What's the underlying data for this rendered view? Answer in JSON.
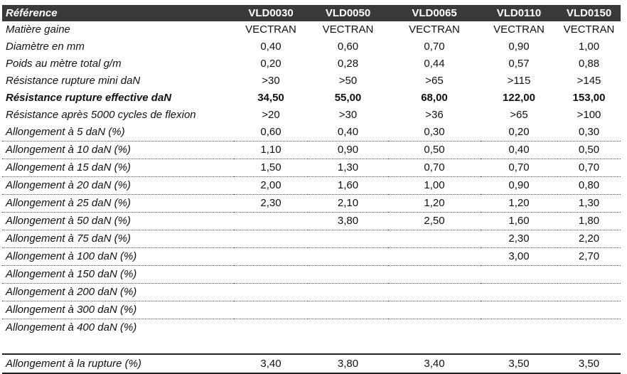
{
  "table": {
    "header": {
      "label": "Référence",
      "columns": [
        "VLD0030",
        "VLD0050",
        "VLD0065",
        "VLD0110",
        "VLD0150"
      ]
    },
    "rows": [
      {
        "label": "Matière gaine",
        "values": [
          "VECTRAN",
          "VECTRAN",
          "VECTRAN",
          "VECTRAN",
          "VECTRAN"
        ]
      },
      {
        "label": "Diamètre en mm",
        "values": [
          "0,40",
          "0,60",
          "0,70",
          "0,90",
          "1,00"
        ]
      },
      {
        "label": "Poids au mètre total g/m",
        "values": [
          "0,20",
          "0,28",
          "0,44",
          "0,57",
          "0,88"
        ]
      },
      {
        "label": "Résistance rupture mini daN",
        "values": [
          ">30",
          ">50",
          ">65",
          ">115",
          ">145"
        ]
      },
      {
        "label": "Résistance rupture effective daN",
        "values": [
          "34,50",
          "55,00",
          "68,00",
          "122,00",
          "153,00"
        ]
      },
      {
        "label": "Résistance après 5000 cycles de flexion",
        "values": [
          ">20",
          ">30",
          ">36",
          ">65",
          ">100"
        ]
      },
      {
        "label": "Allongement à 5 daN (%)",
        "values": [
          "0,60",
          "0,40",
          "0,30",
          "0,20",
          "0,30"
        ]
      },
      {
        "label": "Allongement à 10 daN (%)",
        "values": [
          "1,10",
          "0,90",
          "0,50",
          "0,40",
          "0,50"
        ]
      },
      {
        "label": "Allongement à 15 daN (%)",
        "values": [
          "1,50",
          "1,30",
          "0,70",
          "0,70",
          "0,70"
        ]
      },
      {
        "label": "Allongement à 20 daN (%)",
        "values": [
          "2,00",
          "1,60",
          "1,00",
          "0,90",
          "0,80"
        ]
      },
      {
        "label": "Allongement à 25 daN (%)",
        "values": [
          "2,30",
          "2,10",
          "1,20",
          "1,20",
          "1,30"
        ]
      },
      {
        "label": "Allongement à 50 daN (%)",
        "values": [
          "",
          "3,80",
          "2,50",
          "1,60",
          "1,80"
        ]
      },
      {
        "label": "Allongement à 75 daN (%)",
        "values": [
          "",
          "",
          "",
          "2,30",
          "2,20"
        ]
      },
      {
        "label": "Allongement à 100 daN (%)",
        "values": [
          "",
          "",
          "",
          "3,00",
          "2,70"
        ]
      },
      {
        "label": "Allongement à 150 daN (%)",
        "values": [
          "",
          "",
          "",
          "",
          ""
        ]
      },
      {
        "label": "Allongement à 200 daN (%)",
        "values": [
          "",
          "",
          "",
          "",
          ""
        ]
      },
      {
        "label": "Allongement à 300 daN (%)",
        "values": [
          "",
          "",
          "",
          "",
          ""
        ]
      },
      {
        "label": "Allongement à 400 daN (%)",
        "values": [
          "",
          "",
          "",
          "",
          ""
        ]
      }
    ],
    "final_row": {
      "label": "Allongement à la rupture (%)",
      "values": [
        "3,40",
        "3,80",
        "3,40",
        "3,50",
        "3,50"
      ]
    }
  }
}
